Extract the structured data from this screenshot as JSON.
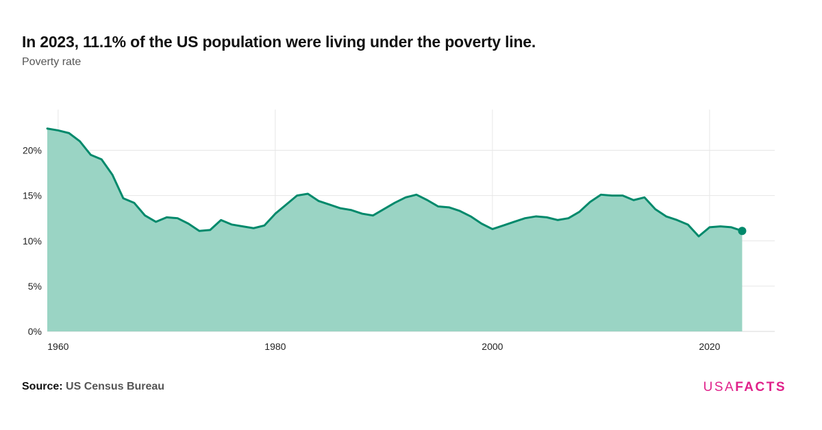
{
  "header": {
    "title": "In 2023, 11.1% of the US population were living under the poverty line.",
    "subtitle": "Poverty rate"
  },
  "footer": {
    "source_label": "Source:",
    "source_value": "US Census Bureau",
    "logo_light": "USA",
    "logo_bold": "FACTS"
  },
  "colors": {
    "line": "#00896b",
    "area": "#9ad4c4",
    "grid": "#e6e6e6",
    "logo": "#e0218a"
  },
  "chart_data": {
    "type": "area",
    "title": "In 2023, 11.1% of the US population were living under the poverty line.",
    "subtitle": "Poverty rate",
    "xlabel": "",
    "ylabel": "",
    "xlim": [
      1959,
      2026
    ],
    "ylim": [
      0,
      24.5
    ],
    "x_ticks": [
      1960,
      1980,
      2000,
      2020
    ],
    "x_tick_labels": [
      "1960",
      "1980",
      "2000",
      "2020"
    ],
    "y_ticks": [
      0,
      5,
      10,
      15,
      20
    ],
    "y_tick_labels": [
      "0%",
      "5%",
      "10%",
      "15%",
      "20%"
    ],
    "grid": true,
    "legend": "none",
    "series": [
      {
        "name": "",
        "x": [
          1959,
          1960,
          1961,
          1962,
          1963,
          1964,
          1965,
          1966,
          1967,
          1968,
          1969,
          1970,
          1971,
          1972,
          1973,
          1974,
          1975,
          1976,
          1977,
          1978,
          1979,
          1980,
          1981,
          1982,
          1983,
          1984,
          1985,
          1986,
          1987,
          1988,
          1989,
          1990,
          1991,
          1992,
          1993,
          1994,
          1995,
          1996,
          1997,
          1998,
          1999,
          2000,
          2001,
          2002,
          2003,
          2004,
          2005,
          2006,
          2007,
          2008,
          2009,
          2010,
          2011,
          2012,
          2013,
          2014,
          2015,
          2016,
          2017,
          2018,
          2019,
          2020,
          2021,
          2022,
          2023
        ],
        "values": [
          22.4,
          22.2,
          21.9,
          21.0,
          19.5,
          19.0,
          17.3,
          14.7,
          14.2,
          12.8,
          12.1,
          12.6,
          12.5,
          11.9,
          11.1,
          11.2,
          12.3,
          11.8,
          11.6,
          11.4,
          11.7,
          13.0,
          14.0,
          15.0,
          15.2,
          14.4,
          14.0,
          13.6,
          13.4,
          13.0,
          12.8,
          13.5,
          14.2,
          14.8,
          15.1,
          14.5,
          13.8,
          13.7,
          13.3,
          12.7,
          11.9,
          11.3,
          11.7,
          12.1,
          12.5,
          12.7,
          12.6,
          12.3,
          12.5,
          13.2,
          14.3,
          15.1,
          15.0,
          15.0,
          14.5,
          14.8,
          13.5,
          12.7,
          12.3,
          11.8,
          10.5,
          11.5,
          11.6,
          11.5,
          11.1
        ]
      }
    ]
  }
}
